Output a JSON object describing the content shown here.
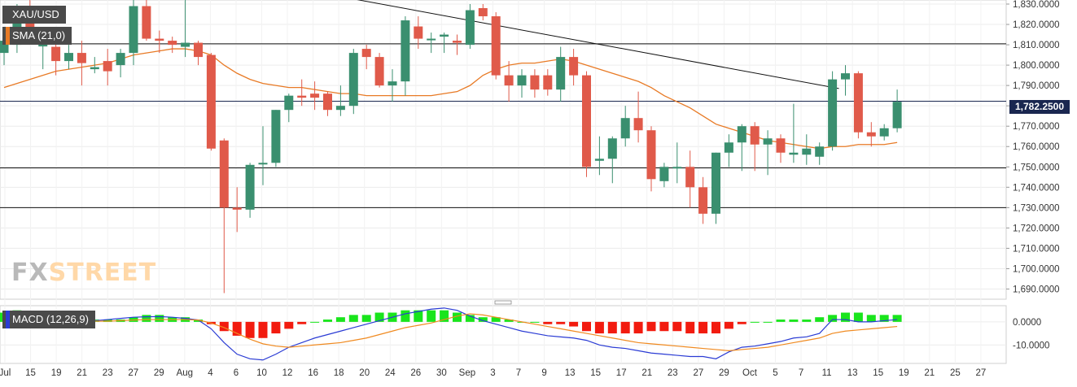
{
  "symbol": "XAU/USD",
  "indicators": {
    "sma_label": "SMA (21,0)",
    "macd_label": "MACD (12,26,9)"
  },
  "logo": {
    "fx": "FX",
    "street": "STREET"
  },
  "current_price": "1,782.2500",
  "colors": {
    "bull": "#3a8f6f",
    "bear": "#e05a4a",
    "sma": "#e87a25",
    "macd_line": "#2a3bd4",
    "signal_line": "#f08a20",
    "hist_pos": "#19e51c",
    "hist_neg": "#f21b0f",
    "price_tag": "#1a2750"
  },
  "chart_data": [
    {
      "type": "candlestick",
      "title": "XAU/USD",
      "ylim": [
        1685,
        1832
      ],
      "y_ticks": [
        "1,830.0000",
        "1,820.0000",
        "1,810.0000",
        "1,800.0000",
        "1,790.0000",
        "1,780.0000",
        "1,770.0000",
        "1,760.0000",
        "1,750.0000",
        "1,740.0000",
        "1,730.0000",
        "1,720.0000",
        "1,710.0000",
        "1,700.0000",
        "1,690.0000"
      ],
      "x_ticks": [
        "Jul",
        "15",
        "19",
        "21",
        "23",
        "27",
        "29",
        "Aug",
        "4",
        "6",
        "10",
        "12",
        "16",
        "18",
        "20",
        "24",
        "26",
        "30",
        "Sep",
        "3",
        "7",
        "9",
        "13",
        "15",
        "17",
        "21",
        "23",
        "27",
        "29",
        "Oct",
        "5",
        "7",
        "11",
        "13",
        "15",
        "19",
        "21",
        "25",
        "27"
      ],
      "horizontal_levels": [
        1810.5,
        1749.5,
        1730.0
      ],
      "current_price_line": 1782.25,
      "trendline": [
        [
          27,
          1832.5
        ],
        [
          64.5,
          1788.5
        ]
      ],
      "candles": [
        {
          "o": 1806,
          "h": 1816,
          "l": 1800,
          "c": 1812
        },
        {
          "o": 1810,
          "h": 1830,
          "l": 1806,
          "c": 1828
        },
        {
          "o": 1828,
          "h": 1832,
          "l": 1810,
          "c": 1812
        },
        {
          "o": 1810,
          "h": 1815,
          "l": 1798,
          "c": 1810
        },
        {
          "o": 1809,
          "h": 1812,
          "l": 1795,
          "c": 1802
        },
        {
          "o": 1802,
          "h": 1810,
          "l": 1798,
          "c": 1806
        },
        {
          "o": 1806,
          "h": 1812,
          "l": 1790,
          "c": 1801
        },
        {
          "o": 1798,
          "h": 1804,
          "l": 1796,
          "c": 1799
        },
        {
          "o": 1802,
          "h": 1808,
          "l": 1790,
          "c": 1797
        },
        {
          "o": 1800,
          "h": 1808,
          "l": 1794,
          "c": 1806
        },
        {
          "o": 1806,
          "h": 1832,
          "l": 1800,
          "c": 1829
        },
        {
          "o": 1829,
          "h": 1832,
          "l": 1812,
          "c": 1813
        },
        {
          "o": 1813,
          "h": 1817,
          "l": 1806,
          "c": 1812
        },
        {
          "o": 1812,
          "h": 1814,
          "l": 1806,
          "c": 1810
        },
        {
          "o": 1809,
          "h": 1832,
          "l": 1804,
          "c": 1811
        },
        {
          "o": 1811,
          "h": 1812,
          "l": 1800,
          "c": 1804
        },
        {
          "o": 1805,
          "h": 1806,
          "l": 1758,
          "c": 1759
        },
        {
          "o": 1763,
          "h": 1764,
          "l": 1688,
          "c": 1730
        },
        {
          "o": 1730,
          "h": 1740,
          "l": 1718,
          "c": 1729
        },
        {
          "o": 1729,
          "h": 1752,
          "l": 1725,
          "c": 1751
        },
        {
          "o": 1752,
          "h": 1770,
          "l": 1741,
          "c": 1752
        },
        {
          "o": 1752,
          "h": 1778,
          "l": 1750,
          "c": 1778
        },
        {
          "o": 1778,
          "h": 1786,
          "l": 1772,
          "c": 1785
        },
        {
          "o": 1785,
          "h": 1793,
          "l": 1780,
          "c": 1784
        },
        {
          "o": 1786,
          "h": 1792,
          "l": 1778,
          "c": 1784
        },
        {
          "o": 1786,
          "h": 1787,
          "l": 1775,
          "c": 1778
        },
        {
          "o": 1778,
          "h": 1790,
          "l": 1775,
          "c": 1780
        },
        {
          "o": 1780,
          "h": 1808,
          "l": 1776,
          "c": 1806
        },
        {
          "o": 1808,
          "h": 1810,
          "l": 1798,
          "c": 1804
        },
        {
          "o": 1804,
          "h": 1806,
          "l": 1789,
          "c": 1790
        },
        {
          "o": 1790,
          "h": 1798,
          "l": 1782,
          "c": 1792
        },
        {
          "o": 1792,
          "h": 1824,
          "l": 1785,
          "c": 1822
        },
        {
          "o": 1819,
          "h": 1824,
          "l": 1808,
          "c": 1813
        },
        {
          "o": 1813,
          "h": 1816,
          "l": 1806,
          "c": 1813
        },
        {
          "o": 1814,
          "h": 1816,
          "l": 1806,
          "c": 1815
        },
        {
          "o": 1812,
          "h": 1815,
          "l": 1805,
          "c": 1811
        },
        {
          "o": 1810,
          "h": 1830,
          "l": 1808,
          "c": 1827
        },
        {
          "o": 1828,
          "h": 1830,
          "l": 1822,
          "c": 1824
        },
        {
          "o": 1824,
          "h": 1826,
          "l": 1793,
          "c": 1795
        },
        {
          "o": 1795,
          "h": 1802,
          "l": 1782,
          "c": 1790
        },
        {
          "o": 1790,
          "h": 1798,
          "l": 1784,
          "c": 1795
        },
        {
          "o": 1795,
          "h": 1798,
          "l": 1784,
          "c": 1788
        },
        {
          "o": 1795,
          "h": 1798,
          "l": 1785,
          "c": 1788
        },
        {
          "o": 1788,
          "h": 1809,
          "l": 1782,
          "c": 1804
        },
        {
          "o": 1804,
          "h": 1808,
          "l": 1790,
          "c": 1795
        },
        {
          "o": 1795,
          "h": 1797,
          "l": 1745,
          "c": 1750
        },
        {
          "o": 1753,
          "h": 1765,
          "l": 1746,
          "c": 1754
        },
        {
          "o": 1754,
          "h": 1765,
          "l": 1742,
          "c": 1764
        },
        {
          "o": 1764,
          "h": 1780,
          "l": 1760,
          "c": 1774
        },
        {
          "o": 1774,
          "h": 1787,
          "l": 1762,
          "c": 1768
        },
        {
          "o": 1768,
          "h": 1770,
          "l": 1738,
          "c": 1744
        },
        {
          "o": 1743,
          "h": 1752,
          "l": 1740,
          "c": 1750
        },
        {
          "o": 1750,
          "h": 1762,
          "l": 1742,
          "c": 1750
        },
        {
          "o": 1750,
          "h": 1758,
          "l": 1730,
          "c": 1740
        },
        {
          "o": 1740,
          "h": 1745,
          "l": 1722,
          "c": 1727
        },
        {
          "o": 1727,
          "h": 1757,
          "l": 1722,
          "c": 1757
        },
        {
          "o": 1757,
          "h": 1766,
          "l": 1750,
          "c": 1762
        },
        {
          "o": 1762,
          "h": 1771,
          "l": 1748,
          "c": 1770
        },
        {
          "o": 1770,
          "h": 1772,
          "l": 1748,
          "c": 1761
        },
        {
          "o": 1761,
          "h": 1768,
          "l": 1746,
          "c": 1764
        },
        {
          "o": 1764,
          "h": 1766,
          "l": 1752,
          "c": 1757
        },
        {
          "o": 1756,
          "h": 1781,
          "l": 1752,
          "c": 1757
        },
        {
          "o": 1756,
          "h": 1766,
          "l": 1751,
          "c": 1759
        },
        {
          "o": 1755,
          "h": 1762,
          "l": 1751,
          "c": 1760
        },
        {
          "o": 1760,
          "h": 1797,
          "l": 1758,
          "c": 1793
        },
        {
          "o": 1793,
          "h": 1800,
          "l": 1785,
          "c": 1796
        },
        {
          "o": 1796,
          "h": 1797,
          "l": 1764,
          "c": 1767
        },
        {
          "o": 1767,
          "h": 1772,
          "l": 1760,
          "c": 1765
        },
        {
          "o": 1765,
          "h": 1771,
          "l": 1763,
          "c": 1769
        },
        {
          "o": 1769,
          "h": 1788,
          "l": 1767,
          "c": 1782
        }
      ],
      "sma_21": [
        1789,
        1791,
        1793,
        1795,
        1797,
        1798,
        1799,
        1800,
        1801,
        1803,
        1805,
        1806,
        1807,
        1808,
        1808,
        1807,
        1805,
        1800,
        1796,
        1793,
        1791,
        1790,
        1789,
        1789,
        1788,
        1787,
        1786,
        1786,
        1785,
        1785,
        1785,
        1785,
        1785,
        1785,
        1786,
        1787,
        1790,
        1795,
        1798,
        1800,
        1801,
        1801,
        1802,
        1803,
        1802,
        1800,
        1798,
        1796,
        1794,
        1792,
        1789,
        1785,
        1782,
        1779,
        1775,
        1771,
        1769,
        1767,
        1765,
        1763,
        1762,
        1761,
        1760,
        1759,
        1760,
        1760,
        1761,
        1761,
        1761,
        1762
      ]
    },
    {
      "type": "macd",
      "title": "MACD (12,26,9)",
      "ylim": [
        -18,
        7
      ],
      "y_ticks": [
        "0.0000",
        "-10.0000"
      ],
      "histogram": [
        4,
        5,
        4,
        4,
        3,
        2,
        2,
        1,
        1,
        1,
        2,
        3,
        3,
        2,
        2,
        1,
        -1,
        -4,
        -6,
        -7,
        -7,
        -5,
        -3,
        -1,
        0,
        1,
        2,
        3,
        3,
        4,
        4,
        5,
        5,
        5,
        5,
        4,
        3,
        2,
        2,
        1,
        0,
        0,
        -1,
        -1,
        -2,
        -4,
        -5,
        -5,
        -5,
        -5,
        -4,
        -4,
        -4,
        -5,
        -5,
        -5,
        -3,
        -1,
        0,
        0,
        1,
        1,
        1,
        2,
        3,
        4,
        4,
        3,
        3,
        3
      ],
      "macd": [
        3,
        3,
        2,
        1,
        0.5,
        0,
        0,
        0.5,
        1,
        1.5,
        2,
        2.2,
        2.3,
        2,
        1.5,
        0.8,
        -3,
        -9,
        -14,
        -16,
        -16.5,
        -14,
        -11,
        -9,
        -7,
        -5.5,
        -4,
        -2.5,
        -1,
        0.5,
        2,
        3.5,
        4.5,
        5.5,
        6,
        5,
        2.5,
        0.5,
        -1,
        -2.5,
        -4,
        -5,
        -6,
        -6.5,
        -7,
        -8,
        -10,
        -11,
        -11.5,
        -12.5,
        -13.5,
        -14,
        -14.5,
        -15,
        -15,
        -16,
        -13,
        -11,
        -10.5,
        -9.5,
        -8.5,
        -7,
        -6.5,
        -5,
        1,
        1,
        0,
        0,
        0.5,
        1
      ],
      "signal": [
        1,
        1,
        1,
        1,
        0.8,
        0.5,
        0.3,
        0.3,
        0.3,
        0.5,
        0.8,
        1,
        1,
        1,
        1,
        0.8,
        -0.5,
        -2.5,
        -5,
        -7.5,
        -9.5,
        -10.5,
        -11,
        -10.5,
        -10,
        -9.5,
        -9,
        -8,
        -7,
        -5.5,
        -4,
        -2.5,
        -1.5,
        -0.5,
        1,
        2.5,
        3.5,
        3,
        2,
        1,
        0,
        -1,
        -2,
        -3,
        -4,
        -5,
        -6,
        -7,
        -8,
        -9,
        -9.5,
        -10,
        -10.5,
        -11,
        -11.5,
        -12,
        -12.5,
        -12,
        -11.5,
        -11,
        -10,
        -9,
        -8,
        -7,
        -5,
        -4,
        -3.5,
        -3,
        -2.5,
        -2
      ]
    }
  ]
}
